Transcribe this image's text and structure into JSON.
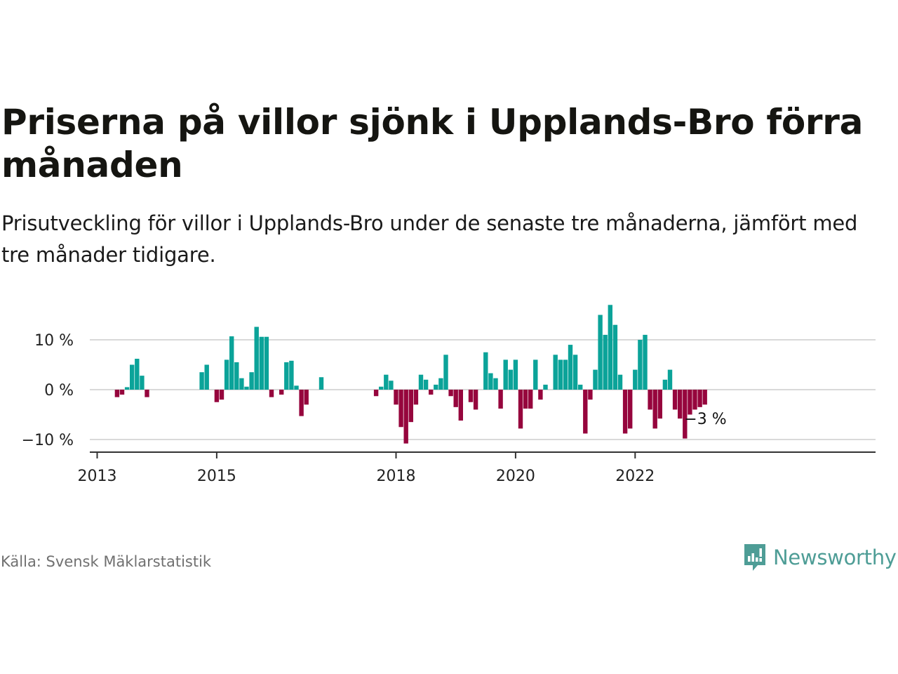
{
  "title": "Priserna på villor sjönk i Upplands-Bro förra månaden",
  "subtitle": "Prisutveckling för villor i Upplands-Bro under de senaste tre månaderna, jämfört med tre månader tidigare.",
  "source": "Källa: Svensk Mäklarstatistik",
  "brand": "Newsworthy",
  "colors": {
    "positive": "#0ba399",
    "negative": "#96053d",
    "brand": "#4e9d96",
    "grid": "#d9d9d9",
    "axis": "#333333"
  },
  "chart_data": {
    "type": "bar",
    "x_unit": "month",
    "x_ticks": [
      "2013",
      "2015",
      "2018",
      "2020",
      "2022"
    ],
    "y_ticks": [
      "10 %",
      "0 %",
      "−10 %"
    ],
    "y_tick_values": [
      10,
      0,
      -10
    ],
    "ylim": [
      -12,
      17
    ],
    "annotation": "−3 %",
    "annotation_x": "2022-11",
    "series": [
      {
        "values": [
          [
            "2013-05",
            -1.5
          ],
          [
            "2013-06",
            -1.0
          ],
          [
            "2013-07",
            0.5
          ],
          [
            "2013-08",
            5.0
          ],
          [
            "2013-09",
            6.2
          ],
          [
            "2013-10",
            2.8
          ],
          [
            "2013-11",
            -1.5
          ],
          [
            "2014-10",
            3.5
          ],
          [
            "2014-11",
            5.0
          ],
          [
            "2015-01",
            -2.5
          ],
          [
            "2015-02",
            -2.0
          ],
          [
            "2015-03",
            6.0
          ],
          [
            "2015-04",
            10.7
          ],
          [
            "2015-05",
            5.5
          ],
          [
            "2015-06",
            2.3
          ],
          [
            "2015-07",
            0.6
          ],
          [
            "2015-08",
            3.5
          ],
          [
            "2015-09",
            12.6
          ],
          [
            "2015-10",
            10.6
          ],
          [
            "2015-11",
            10.6
          ],
          [
            "2015-12",
            -1.5
          ],
          [
            "2016-02",
            -1.0
          ],
          [
            "2016-03",
            5.5
          ],
          [
            "2016-04",
            5.8
          ],
          [
            "2016-05",
            0.8
          ],
          [
            "2016-06",
            -5.3
          ],
          [
            "2016-07",
            -3.0
          ],
          [
            "2016-10",
            2.5
          ],
          [
            "2017-09",
            -1.3
          ],
          [
            "2017-10",
            0.6
          ],
          [
            "2017-11",
            3.0
          ],
          [
            "2017-12",
            1.8
          ],
          [
            "2018-01",
            -3.0
          ],
          [
            "2018-02",
            -7.5
          ],
          [
            "2018-03",
            -10.8
          ],
          [
            "2018-04",
            -6.5
          ],
          [
            "2018-05",
            -3.0
          ],
          [
            "2018-06",
            3.0
          ],
          [
            "2018-07",
            2.0
          ],
          [
            "2018-08",
            -1.0
          ],
          [
            "2018-09",
            1.0
          ],
          [
            "2018-10",
            2.3
          ],
          [
            "2018-11",
            7.0
          ],
          [
            "2018-12",
            -1.3
          ],
          [
            "2019-01",
            -3.5
          ],
          [
            "2019-02",
            -6.2
          ],
          [
            "2019-04",
            -2.5
          ],
          [
            "2019-05",
            -4.0
          ],
          [
            "2019-07",
            7.5
          ],
          [
            "2019-08",
            3.3
          ],
          [
            "2019-09",
            2.3
          ],
          [
            "2019-10",
            -3.8
          ],
          [
            "2019-11",
            6.0
          ],
          [
            "2019-12",
            4.0
          ],
          [
            "2020-01",
            6.0
          ],
          [
            "2020-02",
            -7.8
          ],
          [
            "2020-03",
            -3.8
          ],
          [
            "2020-04",
            -3.8
          ],
          [
            "2020-05",
            6.0
          ],
          [
            "2020-06",
            -2.0
          ],
          [
            "2020-07",
            1.0
          ],
          [
            "2020-09",
            7.0
          ],
          [
            "2020-10",
            6.0
          ],
          [
            "2020-11",
            6.0
          ],
          [
            "2020-12",
            9.0
          ],
          [
            "2021-01",
            7.0
          ],
          [
            "2021-02",
            1.0
          ],
          [
            "2021-03",
            -8.8
          ],
          [
            "2021-04",
            -2.0
          ],
          [
            "2021-05",
            4.0
          ],
          [
            "2021-06",
            15.0
          ],
          [
            "2021-07",
            11.0
          ],
          [
            "2021-08",
            17.0
          ],
          [
            "2021-09",
            13.0
          ],
          [
            "2021-10",
            3.0
          ],
          [
            "2021-11",
            -8.8
          ],
          [
            "2021-12",
            -7.8
          ],
          [
            "2022-01",
            4.0
          ],
          [
            "2022-02",
            10.0
          ],
          [
            "2022-03",
            11.0
          ],
          [
            "2022-04",
            -4.0
          ],
          [
            "2022-05",
            -7.8
          ],
          [
            "2022-06",
            -5.8
          ],
          [
            "2022-07",
            2.0
          ],
          [
            "2022-08",
            4.0
          ],
          [
            "2022-09",
            -4.0
          ],
          [
            "2022-10",
            -5.8
          ],
          [
            "2022-11",
            -9.8
          ],
          [
            "2022-12",
            -5.0
          ],
          [
            "2023-01",
            -4.0
          ],
          [
            "2023-02",
            -3.5
          ],
          [
            "2023-03",
            -3.0
          ]
        ]
      }
    ]
  }
}
